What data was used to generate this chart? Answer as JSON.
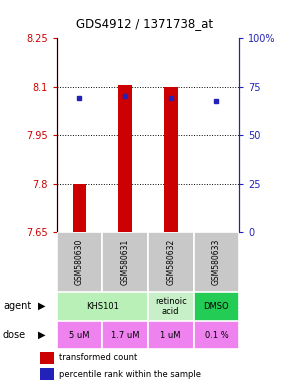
{
  "title": "GDS4912 / 1371738_at",
  "samples": [
    "GSM580630",
    "GSM580631",
    "GSM580632",
    "GSM580633"
  ],
  "bar_bottoms": [
    7.65,
    7.65,
    7.65,
    7.65
  ],
  "bar_tops": [
    7.8,
    8.105,
    8.1,
    7.652
  ],
  "percentile_values": [
    8.065,
    8.072,
    8.065,
    8.056
  ],
  "ylim_left": [
    7.65,
    8.25
  ],
  "ylim_right": [
    0,
    100
  ],
  "yticks_left": [
    7.65,
    7.8,
    7.95,
    8.1,
    8.25
  ],
  "yticks_right": [
    0,
    25,
    50,
    75,
    100
  ],
  "ytick_labels_right": [
    "0",
    "25",
    "50",
    "75",
    "100%"
  ],
  "bar_color": "#cc0000",
  "dot_color": "#2222bb",
  "agent_spans": [
    [
      0,
      2,
      "KHS101",
      "#b8f0b8"
    ],
    [
      2,
      3,
      "retinoic\nacid",
      "#c8f0c8"
    ],
    [
      3,
      4,
      "DMSO",
      "#22cc55"
    ]
  ],
  "dose_labels": [
    "5 uM",
    "1.7 uM",
    "1 uM",
    "0.1 %"
  ],
  "dose_color": "#ee82ee",
  "sample_box_color": "#c8c8c8",
  "left_tick_color": "#cc0000",
  "right_tick_color": "#2222bb",
  "bar_width": 0.3
}
